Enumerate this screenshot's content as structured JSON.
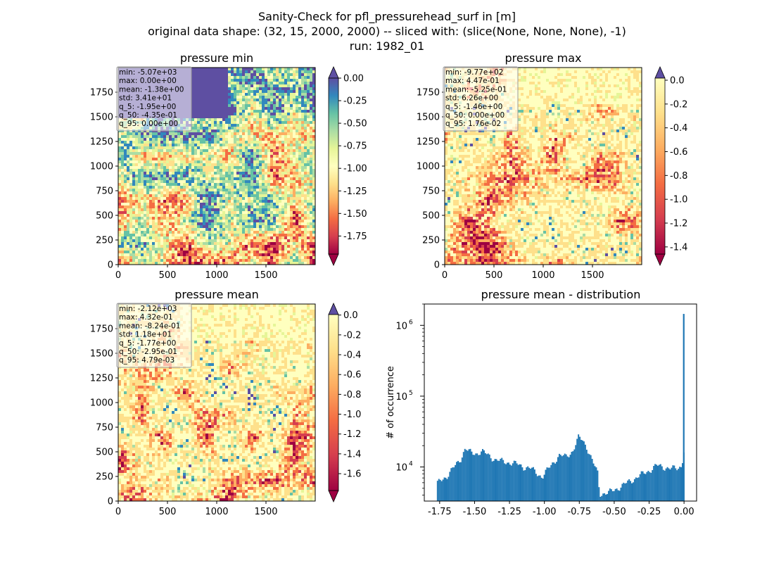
{
  "figure": {
    "title_lines": [
      "Sanity-Check for pfl_pressurehead_surf in [m]",
      "original data shape: (32, 15, 2000, 2000) -- sliced with: (slice(None, None, None), -1)",
      "run: 1982_01"
    ]
  },
  "panels": [
    {
      "id": "pressure-min",
      "title": "pressure min",
      "stats": [
        "min: -5.07e+03",
        "max: 0.00e+00",
        "mean: -1.38e+00",
        "std: 3.41e+01",
        "q_5: -1.95e+00",
        "q_50: -4.35e-01",
        "q_95: 0.00e+00"
      ],
      "xticks": [
        "0",
        "500",
        "1000",
        "1500"
      ],
      "yticks": [
        "0",
        "250",
        "500",
        "750",
        "1000",
        "1250",
        "1500",
        "1750"
      ],
      "colorbar": {
        "range": [
          -1.95,
          0.0
        ],
        "ticks": [
          "0.00",
          "-0.25",
          "-0.50",
          "-0.75",
          "-1.00",
          "-1.25",
          "-1.50",
          "-1.75"
        ],
        "tick_values": [
          0.0,
          -0.25,
          -0.5,
          -0.75,
          -1.0,
          -1.25,
          -1.5,
          -1.75
        ],
        "extend": "both"
      }
    },
    {
      "id": "pressure-max",
      "title": "pressure max",
      "stats": [
        "min: -9.77e+02",
        "max: 4.47e-01",
        "mean: -5.25e-01",
        "std: 6.26e+00",
        "q_5: -1.46e+00",
        "q_50: 0.00e+00",
        "q_95: 1.76e-02"
      ],
      "xticks": [
        "0",
        "500",
        "1000",
        "1500"
      ],
      "yticks": [
        "0",
        "250",
        "500",
        "750",
        "1000",
        "1250",
        "1500",
        "1750"
      ],
      "colorbar": {
        "range": [
          -1.46,
          0.0176
        ],
        "ticks": [
          "0.0",
          "-0.2",
          "-0.4",
          "-0.6",
          "-0.8",
          "-1.0",
          "-1.2",
          "-1.4"
        ],
        "tick_values": [
          0.0,
          -0.2,
          -0.4,
          -0.6,
          -0.8,
          -1.0,
          -1.2,
          -1.4
        ],
        "extend": "both"
      }
    },
    {
      "id": "pressure-mean",
      "title": "pressure mean",
      "stats": [
        "min: -2.12e+03",
        "max: 4.32e-01",
        "mean: -8.24e-01",
        "std: 1.18e+01",
        "q_5: -1.77e+00",
        "q_50: -2.95e-01",
        "q_95: 4.79e-03"
      ],
      "xticks": [
        "0",
        "500",
        "1000",
        "1500"
      ],
      "yticks": [
        "0",
        "250",
        "500",
        "750",
        "1000",
        "1250",
        "1500",
        "1750"
      ],
      "colorbar": {
        "range": [
          -1.77,
          0.00479
        ],
        "ticks": [
          "0.0",
          "-0.2",
          "-0.4",
          "-0.6",
          "-0.8",
          "-1.0",
          "-1.2",
          "-1.4",
          "-1.6"
        ],
        "tick_values": [
          0.0,
          -0.2,
          -0.4,
          -0.6,
          -0.8,
          -1.0,
          -1.2,
          -1.4,
          -1.6
        ],
        "extend": "both"
      }
    }
  ],
  "chart_data": [
    {
      "type": "heatmap",
      "title": "pressure min",
      "xlim": [
        0,
        2000
      ],
      "ylim": [
        0,
        2000
      ],
      "colorscale": "Spectral",
      "zlim": [
        -1.95,
        0.0
      ]
    },
    {
      "type": "heatmap",
      "title": "pressure max",
      "xlim": [
        0,
        2000
      ],
      "ylim": [
        0,
        2000
      ],
      "colorscale": "Spectral",
      "zlim": [
        -1.46,
        0.0176
      ]
    },
    {
      "type": "heatmap",
      "title": "pressure mean",
      "xlim": [
        0,
        2000
      ],
      "ylim": [
        0,
        2000
      ],
      "colorscale": "Spectral",
      "zlim": [
        -1.77,
        0.00479
      ]
    },
    {
      "type": "bar",
      "title": "pressure mean - distribution",
      "ylabel": "# of occurrence",
      "xlabel": "",
      "yscale": "log",
      "xlim": [
        -1.86,
        0.09
      ],
      "ylim": [
        3300,
        2000000
      ],
      "xticks": [
        "-1.75",
        "-1.50",
        "-1.25",
        "-1.00",
        "-0.75",
        "-0.50",
        "-0.25",
        "0.00"
      ],
      "xtick_values": [
        -1.75,
        -1.5,
        -1.25,
        -1.0,
        -0.75,
        -0.5,
        -0.25,
        0.0
      ],
      "yticks": [
        "10^4",
        "10^5",
        "10^6"
      ],
      "ytick_values": [
        10000,
        100000,
        1000000
      ],
      "bar_color": "#1f77b4",
      "bins": [
        [
          -1.77,
          5800
        ],
        [
          -1.75,
          6500
        ],
        [
          -1.7,
          7500
        ],
        [
          -1.65,
          10000
        ],
        [
          -1.6,
          13500
        ],
        [
          -1.57,
          18500
        ],
        [
          -1.55,
          16500
        ],
        [
          -1.5,
          15500
        ],
        [
          -1.45,
          16500
        ],
        [
          -1.4,
          14500
        ],
        [
          -1.35,
          12500
        ],
        [
          -1.3,
          12000
        ],
        [
          -1.25,
          11500
        ],
        [
          -1.2,
          11000
        ],
        [
          -1.15,
          10000
        ],
        [
          -1.1,
          9500
        ],
        [
          -1.05,
          8000
        ],
        [
          -1.02,
          7200
        ],
        [
          -1.0,
          8200
        ],
        [
          -0.95,
          11000
        ],
        [
          -0.9,
          14500
        ],
        [
          -0.85,
          14000
        ],
        [
          -0.8,
          17000
        ],
        [
          -0.76,
          26000
        ],
        [
          -0.73,
          24000
        ],
        [
          -0.7,
          19000
        ],
        [
          -0.66,
          12000
        ],
        [
          -0.62,
          8000
        ],
        [
          -0.61,
          4200
        ],
        [
          -0.55,
          4300
        ],
        [
          -0.5,
          4800
        ],
        [
          -0.45,
          5400
        ],
        [
          -0.4,
          6200
        ],
        [
          -0.35,
          7000
        ],
        [
          -0.3,
          8000
        ],
        [
          -0.25,
          9000
        ],
        [
          -0.2,
          10500
        ],
        [
          -0.15,
          10000
        ],
        [
          -0.1,
          9500
        ],
        [
          -0.05,
          9600
        ],
        [
          -0.02,
          10500
        ],
        [
          -0.01,
          16000
        ],
        [
          0.0,
          1450000
        ]
      ]
    }
  ]
}
